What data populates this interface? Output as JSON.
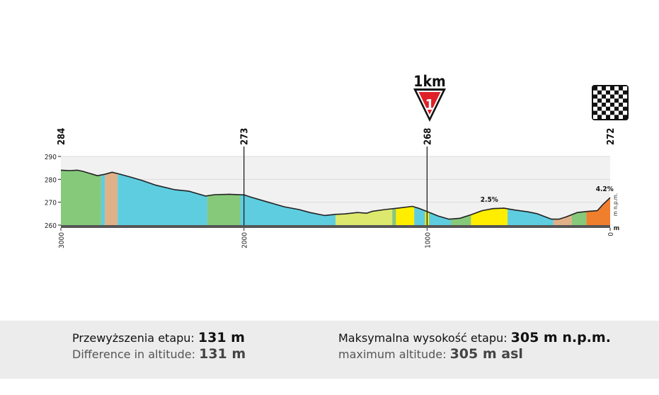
{
  "chart_data": {
    "type": "area",
    "title": "",
    "xlabel": "",
    "ylabel": "m n.p.m.",
    "y_unit": "m",
    "x_unit": "m",
    "xlim": [
      3000,
      0
    ],
    "ylim": [
      260,
      290
    ],
    "y_ticks": [
      "260",
      "270",
      "280",
      "290"
    ],
    "x_ticks": [
      "3000",
      "2000",
      "1000",
      "0"
    ],
    "grid": true,
    "profile": {
      "x": [
        3000,
        2950,
        2910,
        2880,
        2800,
        2760,
        2720,
        2680,
        2620,
        2560,
        2480,
        2380,
        2300,
        2210,
        2160,
        2080,
        2000,
        1960,
        1880,
        1780,
        1700,
        1640,
        1560,
        1500,
        1450,
        1380,
        1330,
        1300,
        1230,
        1160,
        1080,
        1040,
        980,
        940,
        880,
        820,
        760,
        700,
        640,
        580,
        520,
        450,
        400,
        360,
        320,
        280,
        240,
        180,
        120,
        70,
        40,
        0
      ],
      "y": [
        284,
        283.8,
        284,
        283.5,
        281.6,
        282.2,
        283.1,
        282.3,
        281,
        279.6,
        277.4,
        275.5,
        274.8,
        272.7,
        273.3,
        273.5,
        273.2,
        272.2,
        270.3,
        268,
        266.8,
        265.5,
        264.2,
        264.7,
        264.9,
        265.5,
        265.2,
        266,
        266.8,
        267.4,
        268.2,
        267.2,
        265.3,
        264,
        262.6,
        263,
        264.5,
        266.3,
        267.2,
        267.4,
        266.6,
        265.8,
        265,
        263.8,
        262.6,
        262.6,
        263.6,
        265.5,
        266,
        266.3,
        269,
        272
      ]
    },
    "gradient_bands": [
      {
        "from": 3000,
        "to": 2780,
        "color": "#86c97a"
      },
      {
        "from": 2780,
        "to": 2760,
        "color": "#5ecde0"
      },
      {
        "from": 2760,
        "to": 2690,
        "color": "#e0b089"
      },
      {
        "from": 2690,
        "to": 2200,
        "color": "#5ecde0"
      },
      {
        "from": 2200,
        "to": 2020,
        "color": "#86c97a"
      },
      {
        "from": 2020,
        "to": 1500,
        "color": "#5ecde0"
      },
      {
        "from": 1500,
        "to": 1190,
        "color": "#dde86e"
      },
      {
        "from": 1190,
        "to": 1170,
        "color": "#86c97a"
      },
      {
        "from": 1170,
        "to": 1070,
        "color": "#ffee00"
      },
      {
        "from": 1070,
        "to": 1010,
        "color": "#5ecde0"
      },
      {
        "from": 1010,
        "to": 990,
        "color": "#ffee00"
      },
      {
        "from": 990,
        "to": 870,
        "color": "#5ecde0"
      },
      {
        "from": 870,
        "to": 760,
        "color": "#86c97a"
      },
      {
        "from": 760,
        "to": 560,
        "color": "#ffee00"
      },
      {
        "from": 560,
        "to": 310,
        "color": "#5ecde0"
      },
      {
        "from": 310,
        "to": 210,
        "color": "#e0b089"
      },
      {
        "from": 210,
        "to": 130,
        "color": "#86c97a"
      },
      {
        "from": 130,
        "to": 0,
        "color": "#f07f2d"
      }
    ],
    "waypoints": [
      {
        "distance": 3000,
        "label": "284"
      },
      {
        "distance": 2000,
        "label": "273"
      },
      {
        "distance": 1000,
        "label": "268"
      },
      {
        "distance": 0,
        "label": "272"
      }
    ],
    "gradient_labels": [
      {
        "distance": 660,
        "altitude": 267.4,
        "text": "2.5%"
      },
      {
        "distance": 30,
        "altitude": 272,
        "text": "4.2%"
      }
    ],
    "markers": {
      "last_km": {
        "distance": 1000,
        "text": "1km",
        "number": "1"
      },
      "finish": {
        "distance": 0
      }
    }
  },
  "stats": {
    "difference_pl_label": "Przewyższenia etapu:",
    "difference_pl_value": "131 m",
    "difference_en_label": "Difference in altitude:",
    "difference_en_value": "131 m",
    "max_pl_label": "Maksymalna wysokość etapu:",
    "max_pl_value": "305 m n.p.m.",
    "max_en_label": "maximum altitude:",
    "max_en_value": "305 m asl"
  },
  "colors": {
    "background": "#f1f1f1",
    "grid": "#dcdcdc",
    "baseline": "#555555",
    "marker_red": "#e02028"
  }
}
